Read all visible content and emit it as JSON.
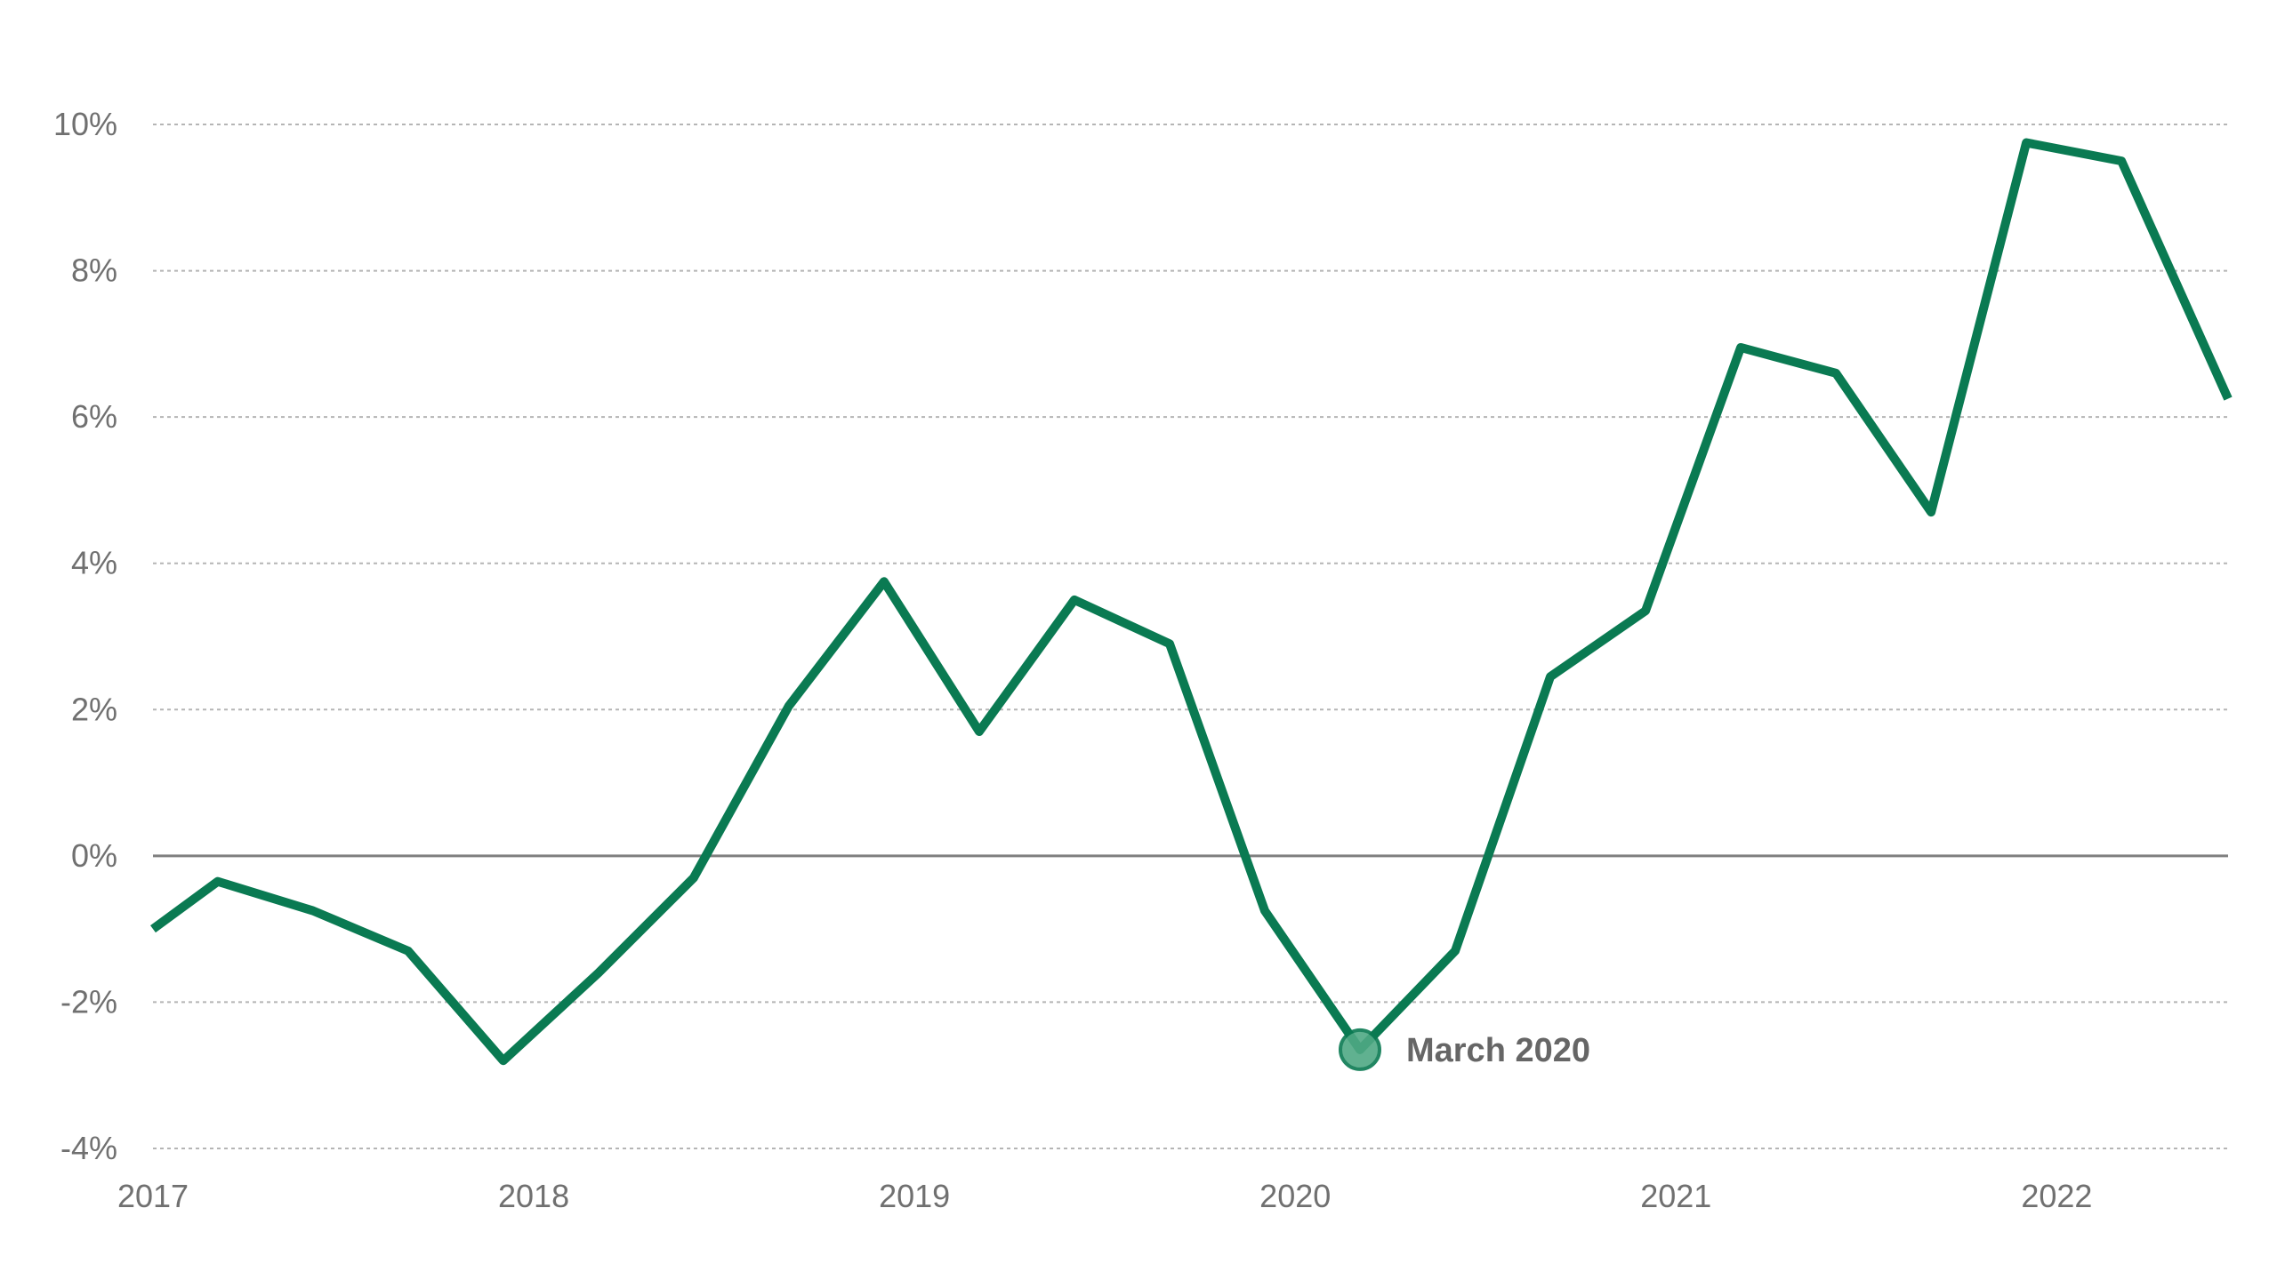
{
  "colors": {
    "line": "#0a7a52",
    "marker_fill": "#4fa984",
    "grid": "#b5b5b5",
    "zero_line": "#7f7f7f",
    "text": "#707070",
    "annotation_text": "#666666"
  },
  "chart_data": {
    "type": "line",
    "title": "",
    "xlabel": "",
    "ylabel": "",
    "xlim": [
      2017.0,
      2022.45
    ],
    "ylim": [
      -4,
      10
    ],
    "x_ticks": [
      2017,
      2018,
      2019,
      2020,
      2021,
      2022
    ],
    "x_tick_labels": [
      "2017",
      "2018",
      "2019",
      "2020",
      "2021",
      "2022"
    ],
    "y_ticks": [
      -4,
      -2,
      0,
      2,
      4,
      6,
      8,
      10
    ],
    "y_tick_labels": [
      "-4%",
      "-2%",
      "0%",
      "2%",
      "4%",
      "6%",
      "8%",
      "10%"
    ],
    "grid": true,
    "zero_line": true,
    "series": [
      {
        "x": [
          2017.0,
          2017.17,
          2017.42,
          2017.67,
          2017.92,
          2018.17,
          2018.42,
          2018.67,
          2018.92,
          2019.17,
          2019.42,
          2019.67,
          2019.92,
          2020.17,
          2020.42,
          2020.67,
          2020.92,
          2021.17,
          2021.42,
          2021.67,
          2021.92,
          2022.17,
          2022.45
        ],
        "y": [
          -1.0,
          -0.35,
          -0.75,
          -1.3,
          -2.8,
          -1.6,
          -0.3,
          2.05,
          3.75,
          1.7,
          3.5,
          2.9,
          -0.75,
          -2.65,
          -1.3,
          2.45,
          3.35,
          6.95,
          6.6,
          4.7,
          9.75,
          9.5,
          6.25
        ]
      }
    ],
    "annotations": [
      {
        "text": "March 2020",
        "x": 2020.17,
        "y": -2.65
      }
    ]
  }
}
